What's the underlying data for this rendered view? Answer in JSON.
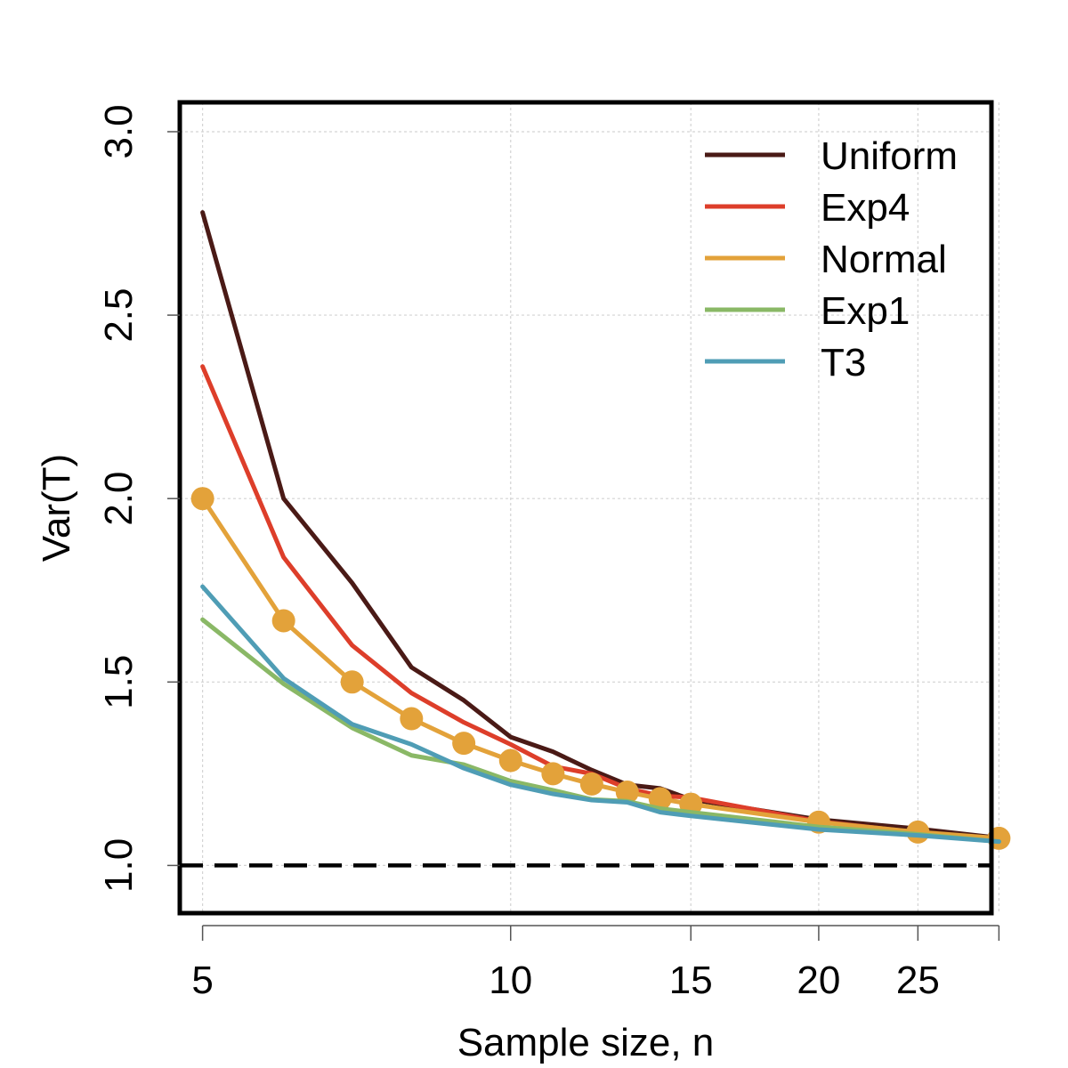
{
  "chart_data": {
    "type": "line",
    "title": "",
    "xlabel": "Sample size, n",
    "ylabel": "Var(T)",
    "xscale": "log",
    "xlim": [
      4.75,
      29.5
    ],
    "ylim": [
      0.87,
      3.08
    ],
    "x_ticks": [
      5,
      10,
      15,
      20,
      25,
      30
    ],
    "x_tick_labels": [
      "5",
      "10",
      "15",
      "20",
      "25",
      ""
    ],
    "y_ticks": [
      1.0,
      1.5,
      2.0,
      2.5,
      3.0
    ],
    "y_tick_labels": [
      "1.0",
      "1.5",
      "2.0",
      "2.5",
      "3.0"
    ],
    "grid": true,
    "reference_line": {
      "y": 1.0,
      "style": "dashed",
      "color": "#000000"
    },
    "legend_position": "top-right",
    "series": [
      {
        "name": "Uniform",
        "color": "#4a1a16",
        "markers": false,
        "x": [
          5,
          6,
          7,
          8,
          9,
          10,
          11,
          12,
          13,
          14,
          15,
          20,
          25,
          30
        ],
        "y": [
          2.78,
          2.0,
          1.77,
          1.54,
          1.45,
          1.35,
          1.31,
          1.26,
          1.22,
          1.21,
          1.18,
          1.125,
          1.1,
          1.075
        ]
      },
      {
        "name": "Exp4",
        "color": "#dd3e2a",
        "markers": false,
        "x": [
          5,
          6,
          7,
          8,
          9,
          10,
          11,
          12,
          13,
          14,
          15,
          20,
          25,
          30
        ],
        "y": [
          2.36,
          1.84,
          1.6,
          1.47,
          1.39,
          1.33,
          1.27,
          1.25,
          1.21,
          1.19,
          1.185,
          1.12,
          1.09,
          1.07
        ]
      },
      {
        "name": "Normal",
        "color": "#e3a23a",
        "markers": true,
        "x": [
          5,
          6,
          7,
          8,
          9,
          10,
          11,
          12,
          13,
          14,
          15,
          20,
          25,
          30
        ],
        "y": [
          2.0,
          1.667,
          1.5,
          1.4,
          1.333,
          1.286,
          1.25,
          1.222,
          1.2,
          1.182,
          1.167,
          1.118,
          1.091,
          1.074
        ]
      },
      {
        "name": "Exp1",
        "color": "#8ab866",
        "markers": false,
        "x": [
          5,
          6,
          7,
          8,
          9,
          10,
          11,
          12,
          13,
          14,
          15,
          20,
          25,
          30
        ],
        "y": [
          1.67,
          1.495,
          1.375,
          1.3,
          1.275,
          1.23,
          1.205,
          1.18,
          1.175,
          1.155,
          1.145,
          1.105,
          1.085,
          1.065
        ]
      },
      {
        "name": "T3",
        "color": "#4f9db5",
        "markers": false,
        "x": [
          5,
          6,
          7,
          8,
          9,
          10,
          11,
          12,
          13,
          14,
          15,
          20,
          25,
          30
        ],
        "y": [
          1.76,
          1.51,
          1.385,
          1.33,
          1.265,
          1.22,
          1.195,
          1.178,
          1.172,
          1.145,
          1.135,
          1.098,
          1.082,
          1.065
        ]
      }
    ]
  }
}
